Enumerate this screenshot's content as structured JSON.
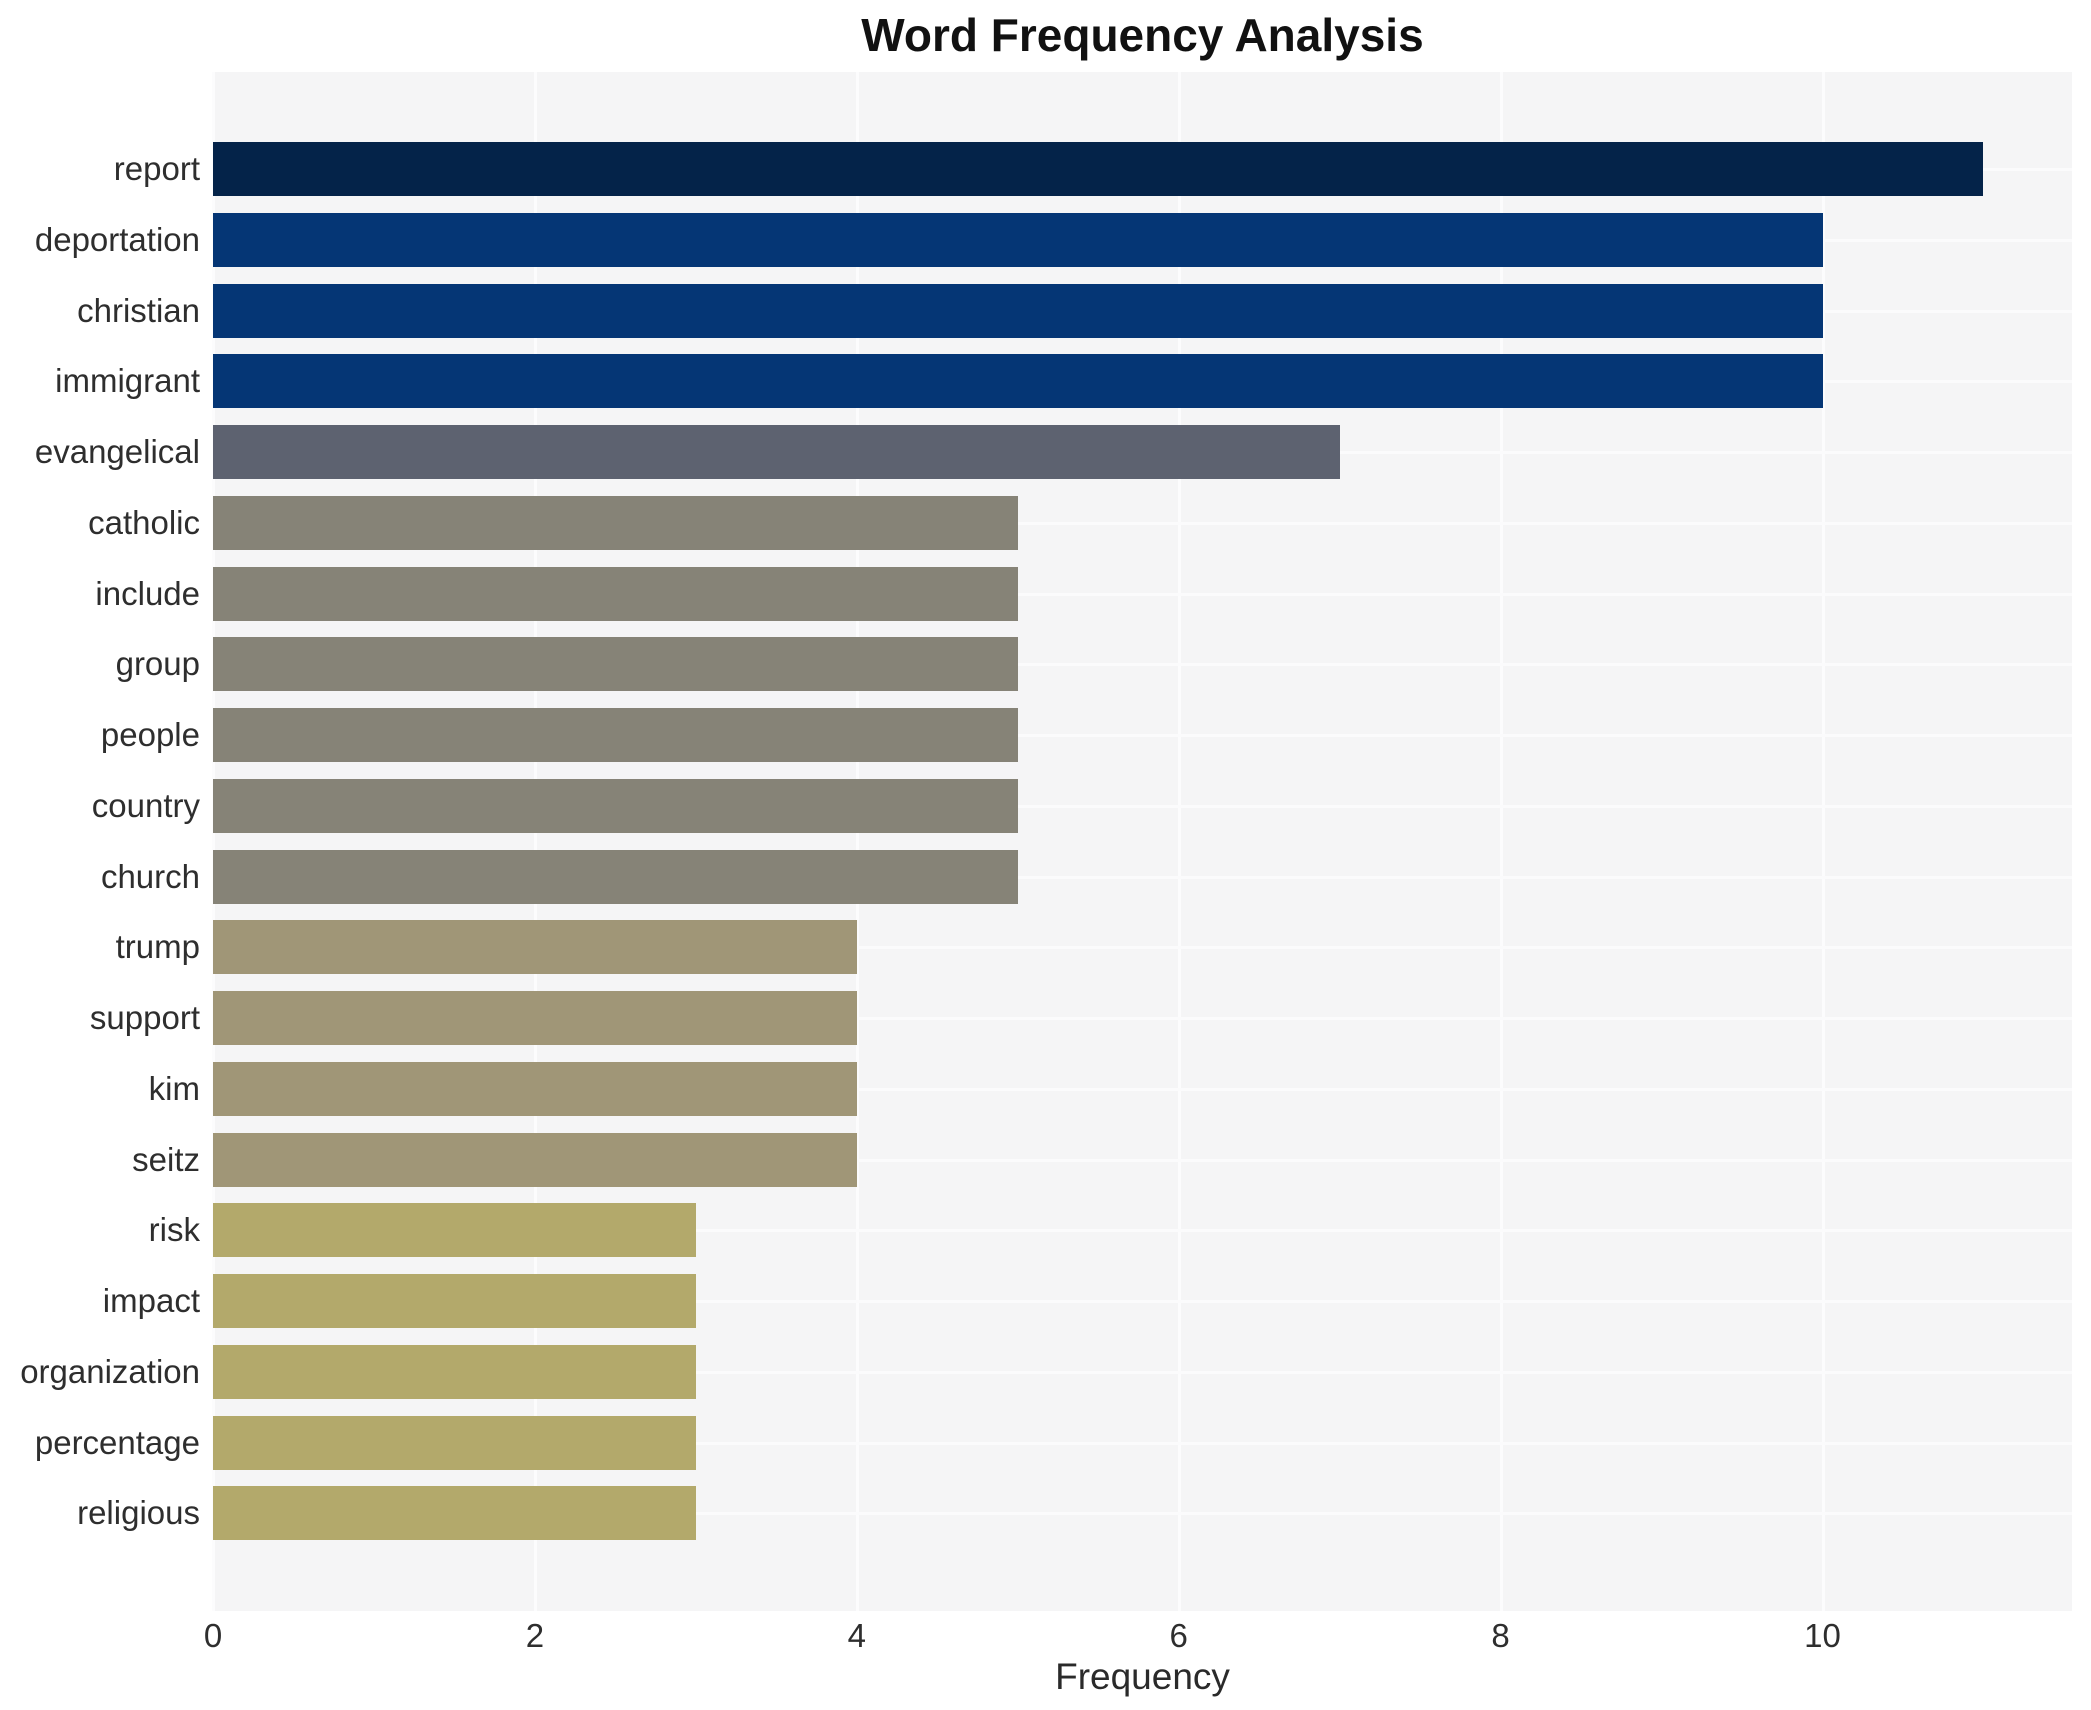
{
  "title": "Word Frequency Analysis",
  "chart_data": {
    "type": "bar",
    "orientation": "horizontal",
    "title": "Word Frequency Analysis",
    "xlabel": "Frequency",
    "ylabel": "",
    "categories": [
      "report",
      "deportation",
      "christian",
      "immigrant",
      "evangelical",
      "catholic",
      "include",
      "group",
      "people",
      "country",
      "church",
      "trump",
      "support",
      "kim",
      "seitz",
      "risk",
      "impact",
      "organization",
      "percentage",
      "religious"
    ],
    "values": [
      11,
      10,
      10,
      10,
      7,
      5,
      5,
      5,
      5,
      5,
      5,
      4,
      4,
      4,
      4,
      3,
      3,
      3,
      3,
      3
    ],
    "bar_colors": [
      "#042349",
      "#053675",
      "#053675",
      "#053675",
      "#5d6270",
      "#868377",
      "#868377",
      "#868377",
      "#868377",
      "#868377",
      "#868377",
      "#a09677",
      "#a09677",
      "#a09677",
      "#a09677",
      "#b3a96b",
      "#b3a96b",
      "#b3a96b",
      "#b3a96b",
      "#b3a96b"
    ],
    "x_ticks": [
      0,
      2,
      4,
      6,
      8,
      10
    ],
    "xlim": [
      0,
      11.55
    ],
    "grid": "on",
    "legend": "none",
    "plot_bg_color": "#f5f5f6",
    "grid_color": "#fcfcfd",
    "title_color": "#111111",
    "tick_label_color": "#2e2e2e"
  }
}
